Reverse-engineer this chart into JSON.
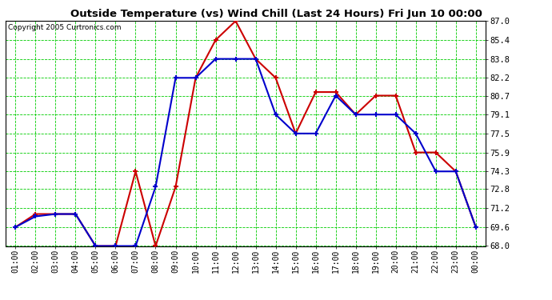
{
  "title": "Outside Temperature (vs) Wind Chill (Last 24 Hours) Fri Jun 10 00:00",
  "copyright": "Copyright 2005 Curtronics.com",
  "x_labels": [
    "01:00",
    "02:00",
    "03:00",
    "04:00",
    "05:00",
    "06:00",
    "07:00",
    "08:00",
    "09:00",
    "10:00",
    "11:00",
    "12:00",
    "13:00",
    "14:00",
    "15:00",
    "16:00",
    "17:00",
    "18:00",
    "19:00",
    "20:00",
    "21:00",
    "22:00",
    "23:00",
    "00:00"
  ],
  "outside_temp": [
    69.6,
    70.5,
    70.7,
    70.7,
    68.0,
    68.0,
    68.0,
    73.0,
    82.2,
    82.2,
    83.8,
    83.8,
    83.8,
    79.1,
    77.5,
    77.5,
    80.7,
    79.1,
    79.1,
    79.1,
    77.5,
    74.3,
    74.3,
    69.6
  ],
  "wind_chill": [
    69.6,
    70.7,
    70.7,
    70.7,
    68.0,
    68.0,
    74.3,
    68.0,
    73.0,
    82.2,
    85.4,
    87.0,
    83.8,
    82.2,
    77.5,
    81.0,
    81.0,
    79.1,
    80.7,
    80.7,
    75.9,
    75.9,
    74.3,
    69.6
  ],
  "outside_color": "#0000cc",
  "windchill_color": "#cc0000",
  "bg_color": "#ffffff",
  "plot_bg_color": "#ffffff",
  "grid_color": "#00cc00",
  "y_min": 68.0,
  "y_max": 87.0,
  "y_ticks": [
    68.0,
    69.6,
    71.2,
    72.8,
    74.3,
    75.9,
    77.5,
    79.1,
    80.7,
    82.2,
    83.8,
    85.4,
    87.0
  ]
}
